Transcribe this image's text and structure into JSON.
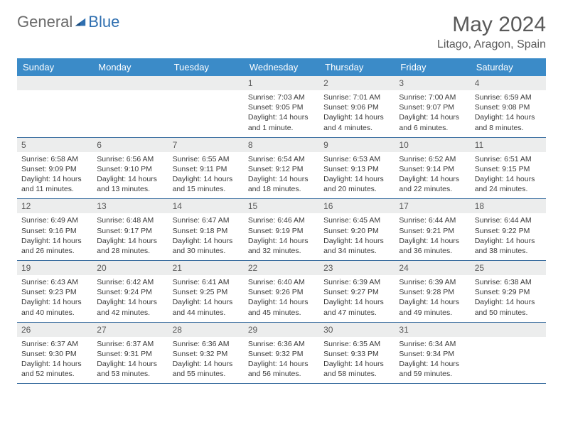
{
  "brand": {
    "general": "General",
    "blue": "Blue"
  },
  "title": "May 2024",
  "location": "Litago, Aragon, Spain",
  "colors": {
    "header_bg": "#3b8bc8",
    "header_text": "#ffffff",
    "daynum_bg": "#eceded",
    "border": "#3b6fa0",
    "text": "#3a3a3a",
    "title_text": "#5a5a5a"
  },
  "weekdays": [
    "Sunday",
    "Monday",
    "Tuesday",
    "Wednesday",
    "Thursday",
    "Friday",
    "Saturday"
  ],
  "weeks": [
    [
      null,
      null,
      null,
      {
        "n": "1",
        "sr": "7:03 AM",
        "ss": "9:05 PM",
        "dl": "14 hours and 1 minute."
      },
      {
        "n": "2",
        "sr": "7:01 AM",
        "ss": "9:06 PM",
        "dl": "14 hours and 4 minutes."
      },
      {
        "n": "3",
        "sr": "7:00 AM",
        "ss": "9:07 PM",
        "dl": "14 hours and 6 minutes."
      },
      {
        "n": "4",
        "sr": "6:59 AM",
        "ss": "9:08 PM",
        "dl": "14 hours and 8 minutes."
      }
    ],
    [
      {
        "n": "5",
        "sr": "6:58 AM",
        "ss": "9:09 PM",
        "dl": "14 hours and 11 minutes."
      },
      {
        "n": "6",
        "sr": "6:56 AM",
        "ss": "9:10 PM",
        "dl": "14 hours and 13 minutes."
      },
      {
        "n": "7",
        "sr": "6:55 AM",
        "ss": "9:11 PM",
        "dl": "14 hours and 15 minutes."
      },
      {
        "n": "8",
        "sr": "6:54 AM",
        "ss": "9:12 PM",
        "dl": "14 hours and 18 minutes."
      },
      {
        "n": "9",
        "sr": "6:53 AM",
        "ss": "9:13 PM",
        "dl": "14 hours and 20 minutes."
      },
      {
        "n": "10",
        "sr": "6:52 AM",
        "ss": "9:14 PM",
        "dl": "14 hours and 22 minutes."
      },
      {
        "n": "11",
        "sr": "6:51 AM",
        "ss": "9:15 PM",
        "dl": "14 hours and 24 minutes."
      }
    ],
    [
      {
        "n": "12",
        "sr": "6:49 AM",
        "ss": "9:16 PM",
        "dl": "14 hours and 26 minutes."
      },
      {
        "n": "13",
        "sr": "6:48 AM",
        "ss": "9:17 PM",
        "dl": "14 hours and 28 minutes."
      },
      {
        "n": "14",
        "sr": "6:47 AM",
        "ss": "9:18 PM",
        "dl": "14 hours and 30 minutes."
      },
      {
        "n": "15",
        "sr": "6:46 AM",
        "ss": "9:19 PM",
        "dl": "14 hours and 32 minutes."
      },
      {
        "n": "16",
        "sr": "6:45 AM",
        "ss": "9:20 PM",
        "dl": "14 hours and 34 minutes."
      },
      {
        "n": "17",
        "sr": "6:44 AM",
        "ss": "9:21 PM",
        "dl": "14 hours and 36 minutes."
      },
      {
        "n": "18",
        "sr": "6:44 AM",
        "ss": "9:22 PM",
        "dl": "14 hours and 38 minutes."
      }
    ],
    [
      {
        "n": "19",
        "sr": "6:43 AM",
        "ss": "9:23 PM",
        "dl": "14 hours and 40 minutes."
      },
      {
        "n": "20",
        "sr": "6:42 AM",
        "ss": "9:24 PM",
        "dl": "14 hours and 42 minutes."
      },
      {
        "n": "21",
        "sr": "6:41 AM",
        "ss": "9:25 PM",
        "dl": "14 hours and 44 minutes."
      },
      {
        "n": "22",
        "sr": "6:40 AM",
        "ss": "9:26 PM",
        "dl": "14 hours and 45 minutes."
      },
      {
        "n": "23",
        "sr": "6:39 AM",
        "ss": "9:27 PM",
        "dl": "14 hours and 47 minutes."
      },
      {
        "n": "24",
        "sr": "6:39 AM",
        "ss": "9:28 PM",
        "dl": "14 hours and 49 minutes."
      },
      {
        "n": "25",
        "sr": "6:38 AM",
        "ss": "9:29 PM",
        "dl": "14 hours and 50 minutes."
      }
    ],
    [
      {
        "n": "26",
        "sr": "6:37 AM",
        "ss": "9:30 PM",
        "dl": "14 hours and 52 minutes."
      },
      {
        "n": "27",
        "sr": "6:37 AM",
        "ss": "9:31 PM",
        "dl": "14 hours and 53 minutes."
      },
      {
        "n": "28",
        "sr": "6:36 AM",
        "ss": "9:32 PM",
        "dl": "14 hours and 55 minutes."
      },
      {
        "n": "29",
        "sr": "6:36 AM",
        "ss": "9:32 PM",
        "dl": "14 hours and 56 minutes."
      },
      {
        "n": "30",
        "sr": "6:35 AM",
        "ss": "9:33 PM",
        "dl": "14 hours and 58 minutes."
      },
      {
        "n": "31",
        "sr": "6:34 AM",
        "ss": "9:34 PM",
        "dl": "14 hours and 59 minutes."
      },
      null
    ]
  ],
  "labels": {
    "sunrise": "Sunrise:",
    "sunset": "Sunset:",
    "daylight": "Daylight:"
  }
}
